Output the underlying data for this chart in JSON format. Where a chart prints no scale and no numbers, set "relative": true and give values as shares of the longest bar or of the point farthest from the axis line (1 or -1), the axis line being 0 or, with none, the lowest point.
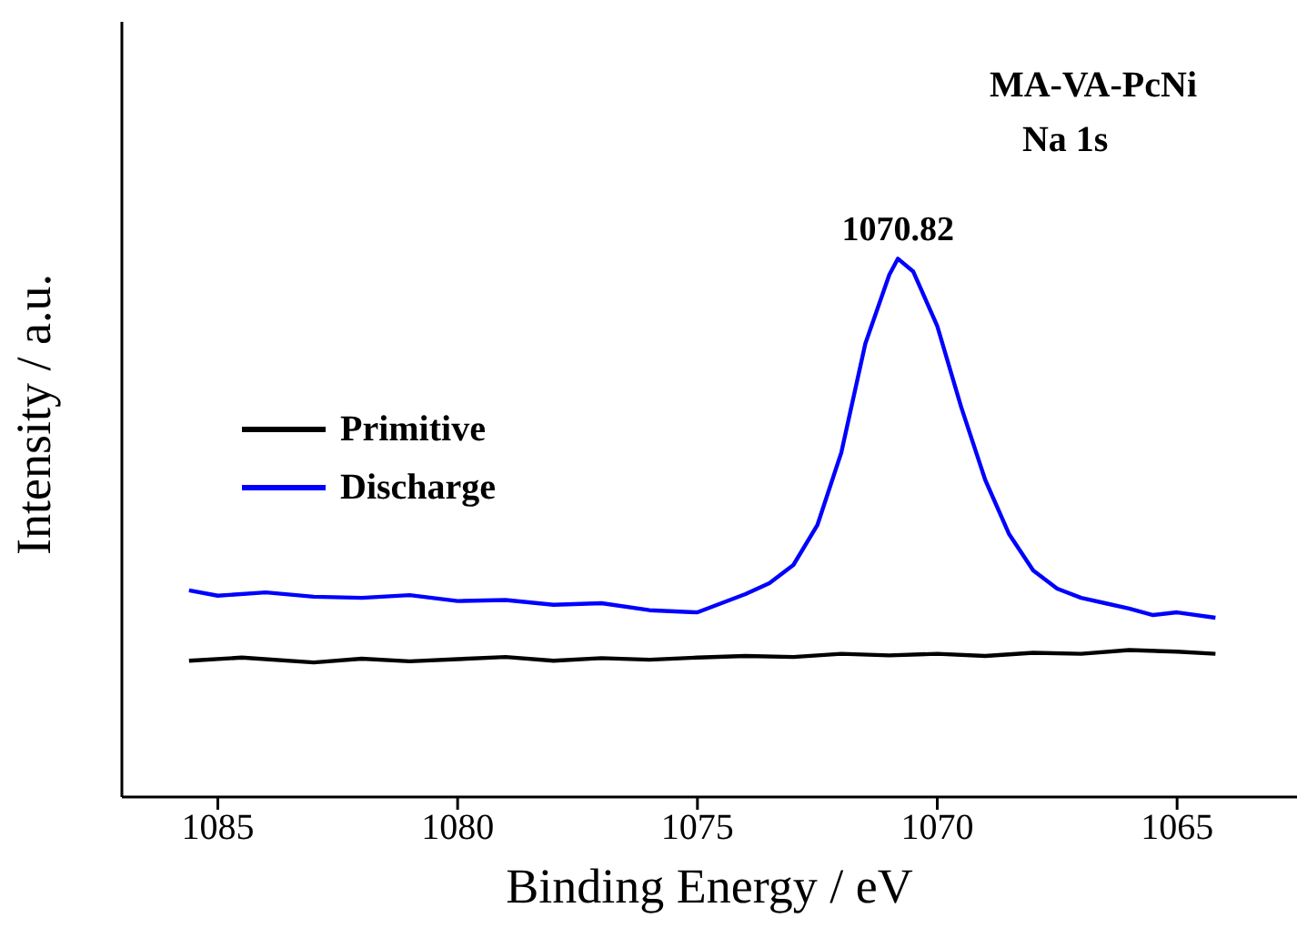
{
  "chart_data": {
    "type": "line",
    "xlabel": "Binding Energy / eV",
    "ylabel": "Intensity / a.u.",
    "relative": true,
    "tick_labels": "x",
    "legend": "left",
    "grid": false,
    "marker": "none",
    "xlim": [
      1087,
      1062.5
    ],
    "xticks": [
      1085,
      1080,
      1075,
      1070,
      1065
    ],
    "annotations": [
      "MA-VA-PcNi",
      "Na 1s",
      {
        "text": "1070.82",
        "x": 1070.82,
        "y": 1
      }
    ],
    "series": [
      {
        "name": "Primitive",
        "color": "#000000",
        "x": [
          1085.6,
          1084.5,
          1083,
          1082,
          1081,
          1080,
          1079,
          1078,
          1077,
          1076,
          1075,
          1074,
          1073,
          1072,
          1071,
          1070,
          1069,
          1068,
          1067,
          1066,
          1065,
          1064.2
        ],
        "values": [
          0.253,
          0.259,
          0.25,
          0.257,
          0.252,
          0.256,
          0.26,
          0.253,
          0.258,
          0.255,
          0.259,
          0.262,
          0.26,
          0.266,
          0.263,
          0.266,
          0.262,
          0.268,
          0.266,
          0.273,
          0.27,
          0.266
        ]
      },
      {
        "name": "Discharge",
        "color": "#0000ff",
        "x": [
          1085.6,
          1085,
          1084,
          1083,
          1082,
          1081,
          1080,
          1079,
          1078,
          1077,
          1076,
          1075,
          1074.5,
          1074,
          1073.5,
          1073,
          1072.5,
          1072,
          1071.5,
          1071,
          1070.82,
          1070.5,
          1070,
          1069.5,
          1069,
          1068.5,
          1068,
          1067.5,
          1067,
          1066.5,
          1066,
          1065.5,
          1065,
          1064.2
        ],
        "values": [
          0.384,
          0.374,
          0.38,
          0.372,
          0.37,
          0.375,
          0.364,
          0.366,
          0.357,
          0.36,
          0.347,
          0.343,
          0.36,
          0.377,
          0.397,
          0.431,
          0.505,
          0.64,
          0.842,
          0.97,
          1,
          0.976,
          0.875,
          0.724,
          0.589,
          0.488,
          0.421,
          0.387,
          0.37,
          0.36,
          0.35,
          0.338,
          0.343,
          0.333
        ]
      }
    ]
  }
}
